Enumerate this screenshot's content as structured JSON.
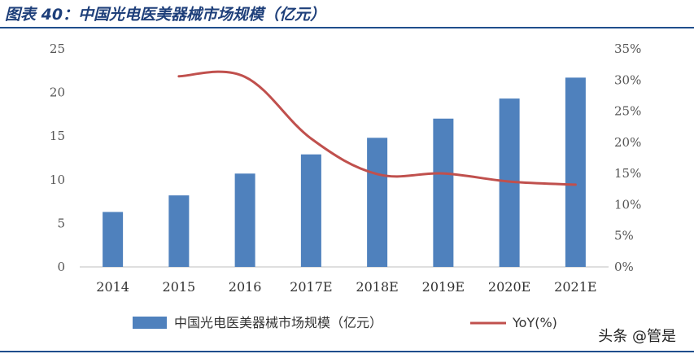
{
  "header": {
    "title": "图表 40：中国光电医美器械市场规模（亿元）"
  },
  "watermark": {
    "text": "头条 @管是"
  },
  "colors": {
    "bar": "#4f81bd",
    "line": "#c0504d",
    "rule": "#1f4e8c",
    "title": "#1e3f7a"
  },
  "chart_data": {
    "type": "bar",
    "categories": [
      "2014",
      "2015",
      "2016",
      "2017E",
      "2018E",
      "2019E",
      "2020E",
      "2021E"
    ],
    "series": [
      {
        "name": "中国光电医美器械市场规模（亿元）",
        "type": "bar",
        "axis": "left",
        "values": [
          6.3,
          8.2,
          10.7,
          12.9,
          14.8,
          17.0,
          19.3,
          21.7
        ]
      },
      {
        "name": "YoY(%)",
        "type": "line",
        "axis": "right",
        "values": [
          null,
          30.6,
          30.5,
          20.6,
          14.9,
          15.0,
          13.7,
          13.2
        ]
      }
    ],
    "y_left": {
      "ylim": [
        0,
        25
      ],
      "ticks": [
        "0",
        "5",
        "10",
        "15",
        "20",
        "25"
      ]
    },
    "y_right": {
      "ylim": [
        0,
        35
      ],
      "ticks": [
        "0%",
        "5%",
        "10%",
        "15%",
        "20%",
        "25%",
        "30%",
        "35%"
      ]
    },
    "legend": "bottom",
    "grid": false
  }
}
